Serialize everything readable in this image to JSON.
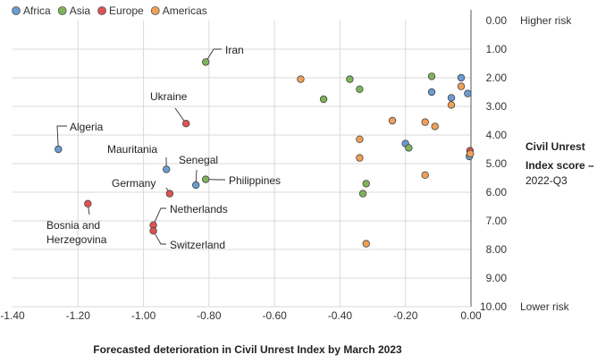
{
  "chart_data": {
    "type": "scatter",
    "xlabel": "Forecasted deterioration in Civil Unrest Index by March 2023",
    "ylabel": [
      "Civil Unrest",
      "Index score –",
      "2022-Q3"
    ],
    "y_top_label": "Higher risk",
    "y_bottom_label": "Lower risk",
    "xlim": [
      -1.4,
      0.0
    ],
    "ylim": [
      0.0,
      10.0
    ],
    "x_ticks": [
      "-1.40",
      "-1.20",
      "-1.00",
      "-0.80",
      "-0.60",
      "-0.40",
      "-0.20",
      "0.00"
    ],
    "y_ticks": [
      "0.00",
      "1.00",
      "2.00",
      "3.00",
      "4.00",
      "5.00",
      "6.00",
      "7.00",
      "8.00",
      "9.00",
      "10.00"
    ],
    "y_reversed": true,
    "grid": true,
    "legend_position": "top-left",
    "series": [
      {
        "name": "Africa",
        "color": "#6b9bd1",
        "points": [
          {
            "x": -1.26,
            "y": 4.5,
            "label": "Algeria"
          },
          {
            "x": -0.93,
            "y": 5.2,
            "label": "Mauritania"
          },
          {
            "x": -0.84,
            "y": 5.75,
            "label": "Senegal"
          },
          {
            "x": -0.2,
            "y": 4.3
          },
          {
            "x": -0.12,
            "y": 2.5
          },
          {
            "x": -0.06,
            "y": 2.7
          },
          {
            "x": -0.03,
            "y": 2.0
          },
          {
            "x": -0.01,
            "y": 2.55
          },
          {
            "x": -0.005,
            "y": 4.75
          }
        ]
      },
      {
        "name": "Asia",
        "color": "#7fb35a",
        "points": [
          {
            "x": -0.81,
            "y": 1.45,
            "label": "Iran"
          },
          {
            "x": -0.81,
            "y": 5.55,
            "label": "Philippines"
          },
          {
            "x": -0.45,
            "y": 2.75
          },
          {
            "x": -0.37,
            "y": 2.05
          },
          {
            "x": -0.34,
            "y": 2.4
          },
          {
            "x": -0.32,
            "y": 5.7
          },
          {
            "x": -0.33,
            "y": 6.05
          },
          {
            "x": -0.19,
            "y": 4.45
          },
          {
            "x": -0.12,
            "y": 1.95
          }
        ]
      },
      {
        "name": "Europe",
        "color": "#e05252",
        "points": [
          {
            "x": -0.87,
            "y": 3.6,
            "label": "Ukraine"
          },
          {
            "x": -0.92,
            "y": 6.05,
            "label": "Germany"
          },
          {
            "x": -1.17,
            "y": 6.4,
            "label": "Bosnia and\nHerzegovina"
          },
          {
            "x": -0.97,
            "y": 7.15,
            "label": "Netherlands"
          },
          {
            "x": -0.97,
            "y": 7.35,
            "label": "Switzerland"
          },
          {
            "x": -0.003,
            "y": 4.55
          }
        ]
      },
      {
        "name": "Americas",
        "color": "#f0a056",
        "points": [
          {
            "x": -0.52,
            "y": 2.05
          },
          {
            "x": -0.34,
            "y": 4.15
          },
          {
            "x": -0.34,
            "y": 4.8
          },
          {
            "x": -0.24,
            "y": 3.5
          },
          {
            "x": -0.14,
            "y": 3.55
          },
          {
            "x": -0.11,
            "y": 3.7
          },
          {
            "x": -0.14,
            "y": 5.4
          },
          {
            "x": -0.32,
            "y": 7.8
          },
          {
            "x": -0.06,
            "y": 2.95
          },
          {
            "x": -0.03,
            "y": 2.3
          },
          {
            "x": -0.002,
            "y": 4.65
          }
        ]
      }
    ]
  }
}
